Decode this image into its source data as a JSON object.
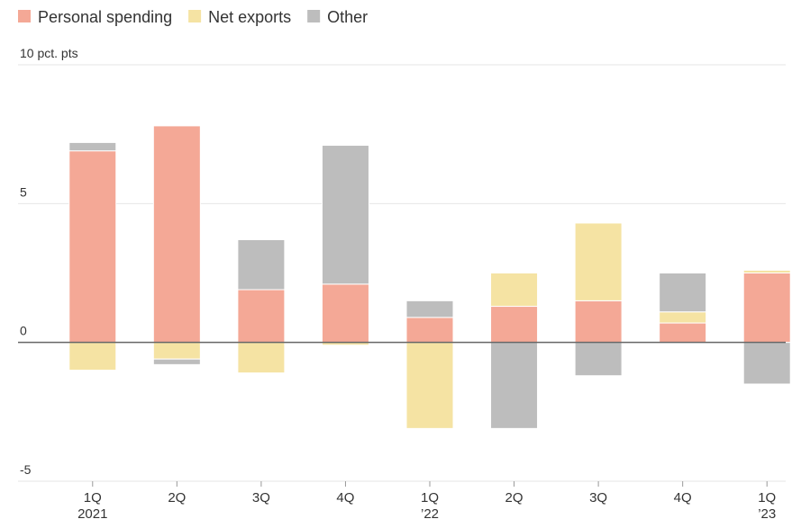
{
  "chart_data": {
    "type": "stacked_bar",
    "categories": [
      [
        "1Q",
        "2021"
      ],
      [
        "2Q"
      ],
      [
        "3Q"
      ],
      [
        "4Q"
      ],
      [
        "1Q",
        "’22"
      ],
      [
        "2Q"
      ],
      [
        "3Q"
      ],
      [
        "4Q"
      ],
      [
        "1Q",
        "’23"
      ]
    ],
    "series": [
      {
        "name": "Personal spending",
        "color": "#f4a896",
        "values": [
          6.9,
          7.8,
          1.9,
          2.1,
          0.9,
          1.3,
          1.5,
          0.7,
          2.5
        ]
      },
      {
        "name": "Net exports",
        "color": "#f5e3a3",
        "values": [
          -1.0,
          -0.6,
          -1.1,
          -0.1,
          -3.1,
          1.2,
          2.8,
          0.4,
          0.1
        ]
      },
      {
        "name": "Other",
        "color": "#bdbdbd",
        "values": [
          0.3,
          -0.2,
          1.8,
          5.0,
          0.6,
          -3.1,
          -1.2,
          1.4,
          -1.5
        ]
      }
    ],
    "ylim": [
      -5,
      10
    ],
    "yticks": [
      {
        "value": 10,
        "label": "10 pct. pts"
      },
      5,
      0,
      -5
    ],
    "grid": true
  }
}
